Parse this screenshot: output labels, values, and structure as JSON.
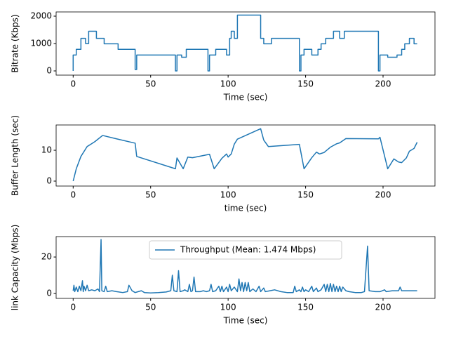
{
  "chart_data": [
    {
      "type": "line",
      "xlabel": "Time (sec)",
      "ylabel": "Bitrate (Kbps)",
      "xlim": [
        -11,
        233.5
      ],
      "xticks": [
        0,
        50,
        100,
        150,
        200
      ],
      "ylim": [
        -154,
        2154
      ],
      "yticks": [
        0,
        1000,
        2000
      ],
      "x": [
        0,
        0,
        2,
        2,
        5,
        5,
        8,
        8,
        10,
        10,
        15,
        15,
        20,
        20,
        29,
        29,
        40,
        40,
        41,
        41,
        66,
        66,
        67,
        67,
        70,
        70,
        73,
        73,
        87,
        87,
        88,
        88,
        92,
        92,
        99,
        99,
        101,
        101,
        102,
        102,
        104,
        104,
        106,
        106,
        121,
        121,
        123,
        123,
        128,
        128,
        146,
        146,
        147,
        147,
        149,
        149,
        154,
        154,
        158,
        158,
        160,
        160,
        163,
        163,
        168,
        168,
        172,
        172,
        175,
        175,
        197,
        197,
        198,
        198,
        203,
        203,
        209,
        209,
        212,
        212,
        214,
        214,
        217,
        217,
        220,
        220,
        222
      ],
      "series": [
        {
          "color": "#1f77b4",
          "values": [
            0,
            580,
            580,
            790,
            790,
            1190,
            1190,
            1000,
            1000,
            1450,
            1450,
            1190,
            1190,
            990,
            990,
            790,
            790,
            50,
            50,
            580,
            580,
            0,
            0,
            580,
            580,
            500,
            500,
            790,
            790,
            0,
            0,
            580,
            580,
            790,
            790,
            580,
            580,
            1190,
            1190,
            1450,
            1450,
            1190,
            1190,
            2040,
            2040,
            1190,
            1190,
            990,
            990,
            1190,
            1190,
            0,
            0,
            580,
            580,
            790,
            790,
            580,
            580,
            790,
            790,
            990,
            990,
            1190,
            1190,
            1450,
            1450,
            1190,
            1190,
            1450,
            1450,
            0,
            0,
            580,
            580,
            500,
            500,
            580,
            580,
            790,
            790,
            990,
            990,
            1190,
            1190,
            990,
            990
          ]
        }
      ]
    },
    {
      "type": "line",
      "xlabel": "time (sec)",
      "ylabel": "Buffer Length (sec)",
      "xlim": [
        -11,
        233.5
      ],
      "xticks": [
        0,
        50,
        100,
        150,
        200
      ],
      "ylim": [
        -1.6,
        18.2
      ],
      "yticks": [
        0,
        10
      ],
      "x": [
        0,
        1,
        2,
        5,
        9,
        14,
        19,
        28,
        40,
        41,
        66,
        67,
        71,
        74,
        77,
        88,
        91,
        96,
        99,
        100,
        102,
        104,
        106,
        121,
        123,
        126,
        146,
        149,
        154,
        157,
        159,
        162,
        166,
        170,
        172,
        176,
        197,
        198,
        203,
        207,
        210,
        212,
        215,
        217,
        220,
        222
      ],
      "series": [
        {
          "color": "#1f77b4",
          "values": [
            0,
            2,
            4,
            8,
            11.2,
            12.8,
            14.8,
            13.7,
            12.3,
            8,
            4,
            7.5,
            4,
            7.8,
            7.6,
            8.7,
            4,
            7.4,
            8.8,
            7.8,
            8.8,
            12,
            13.6,
            17,
            13.3,
            11.2,
            11.9,
            4,
            7.6,
            9.4,
            8.8,
            9.3,
            11,
            12.1,
            12.4,
            13.8,
            13.7,
            14.2,
            4,
            7.2,
            6.2,
            6,
            7.5,
            9.7,
            10.6,
            12.6
          ]
        }
      ]
    },
    {
      "type": "line",
      "xlabel": "Time (sec)",
      "ylabel": "link Capacity (Mbps)",
      "xlim": [
        -11,
        233.5
      ],
      "xticks": [
        0,
        50,
        100,
        150,
        200
      ],
      "ylim": [
        -2.7,
        31.2
      ],
      "yticks": [
        0,
        20
      ],
      "legend": "upper center",
      "x": [
        0,
        0.5,
        1,
        2,
        3,
        4,
        5,
        6,
        6.5,
        7,
        8,
        9,
        10,
        12,
        14,
        16,
        17,
        18,
        18.5,
        20,
        21,
        22,
        25,
        28,
        32,
        35,
        36,
        38,
        40,
        42,
        44,
        46,
        50,
        55,
        60,
        63,
        64,
        65,
        67,
        68,
        69,
        71,
        72,
        74,
        75,
        76,
        77,
        78,
        79,
        82,
        84,
        86,
        88,
        89,
        90,
        92,
        94,
        95,
        96,
        97,
        99,
        100,
        101,
        102,
        104,
        106,
        107,
        108,
        109,
        110,
        111,
        112,
        113,
        114,
        116,
        118,
        120,
        121,
        123,
        124,
        127,
        130,
        134,
        138,
        142,
        143,
        144,
        146,
        147,
        148,
        149,
        150,
        152,
        154,
        155,
        157,
        158,
        160,
        162,
        163,
        164,
        165,
        166,
        167,
        168,
        169,
        170,
        171,
        172,
        173,
        174,
        176,
        178,
        182,
        186,
        188,
        190,
        191,
        195,
        198,
        201,
        202,
        206,
        210,
        211,
        212,
        218,
        222
      ],
      "series": [
        {
          "name": "Throughput (Mean: 1.474 Mbps)",
          "color": "#1f77b4",
          "values": [
            1.5,
            4.5,
            1,
            3.5,
            1,
            4,
            1.5,
            7,
            1,
            4,
            1.5,
            4.5,
            1.5,
            2,
            1.5,
            2.5,
            1,
            29.6,
            1.5,
            1,
            4,
            1,
            1.5,
            1,
            0.5,
            1,
            4.5,
            1.5,
            0.5,
            1,
            1.5,
            0.5,
            0.3,
            0.5,
            0.8,
            1.5,
            10,
            1.5,
            1,
            12.5,
            1,
            1.5,
            2,
            1,
            5,
            1,
            1.5,
            9,
            1,
            1,
            1.5,
            1,
            1.5,
            5,
            1,
            1.5,
            4,
            1,
            4,
            1,
            3.5,
            1,
            5,
            1.5,
            3.5,
            1,
            8,
            1.5,
            6,
            1,
            6,
            1.5,
            6,
            1,
            2.5,
            1,
            4,
            1,
            3,
            1,
            1.5,
            2,
            1,
            0.5,
            0.5,
            4,
            1,
            2,
            1,
            3.5,
            1,
            2,
            1,
            4,
            1,
            3,
            1,
            2,
            5,
            1,
            5,
            1,
            5.5,
            1,
            5,
            1,
            4,
            1,
            4,
            1,
            3.5,
            1.5,
            1,
            0.5,
            0.5,
            1,
            26,
            1.5,
            1,
            1,
            2,
            1,
            1.5,
            1.5,
            3.5,
            1.5,
            1.5,
            1.5
          ]
        }
      ]
    }
  ]
}
